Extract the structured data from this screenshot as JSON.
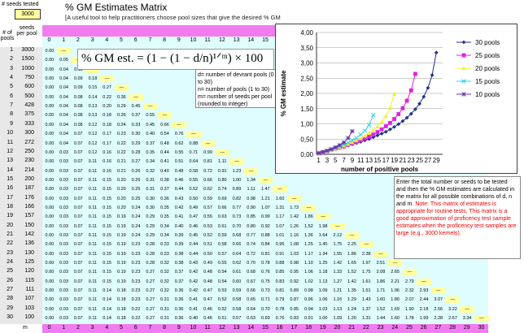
{
  "header": {
    "seeds_tested_label": "# seeds tested",
    "seeds_tested_value": "3000",
    "title": "% GM Estimates Matrix",
    "subtitle": "[A useful tool to help practitioners choose pool sizes that give  the desired % GM",
    "col_header_label_pools": "# of pools",
    "col_header_label_seeds": "seeds per pool"
  },
  "columns": [
    "0",
    "1",
    "2",
    "3",
    "4",
    "5",
    "6",
    "7",
    "8",
    "9",
    "10",
    "11",
    "12",
    "13",
    "14",
    "15",
    "16",
    "17",
    "18",
    "19",
    "20",
    "21",
    "22",
    "23",
    "24",
    "25",
    "26",
    "27",
    "28",
    "29",
    "30"
  ],
  "bottom_row_label": "m",
  "rows": [
    {
      "n": "1",
      "m": "3000"
    },
    {
      "n": "2",
      "m": "1500"
    },
    {
      "n": "3",
      "m": "1000"
    },
    {
      "n": "4",
      "m": "750"
    },
    {
      "n": "5",
      "m": "600"
    },
    {
      "n": "6",
      "m": "500"
    },
    {
      "n": "7",
      "m": "428"
    },
    {
      "n": "8",
      "m": "375"
    },
    {
      "n": "9",
      "m": "333"
    },
    {
      "n": "10",
      "m": "300"
    },
    {
      "n": "11",
      "m": "272"
    },
    {
      "n": "12",
      "m": "250"
    },
    {
      "n": "13",
      "m": "230"
    },
    {
      "n": "14",
      "m": "214"
    },
    {
      "n": "15",
      "m": "200"
    },
    {
      "n": "16",
      "m": "187"
    },
    {
      "n": "17",
      "m": "176"
    },
    {
      "n": "18",
      "m": "166"
    },
    {
      "n": "19",
      "m": "157"
    },
    {
      "n": "20",
      "m": "150"
    },
    {
      "n": "21",
      "m": "142"
    },
    {
      "n": "22",
      "m": "136"
    },
    {
      "n": "23",
      "m": "130"
    },
    {
      "n": "24",
      "m": "125"
    },
    {
      "n": "25",
      "m": "120"
    },
    {
      "n": "26",
      "m": "115"
    },
    {
      "n": "27",
      "m": "111"
    },
    {
      "n": "28",
      "m": "107"
    },
    {
      "n": "29",
      "m": "103"
    },
    {
      "n": "30",
      "m": "100"
    }
  ],
  "formula": "% GM est. = (1 − (1 − d/n)¹ᐟᵐ) × 100",
  "legend_text": {
    "d": "d= number of devrant pools (0 to 30)",
    "n": "n= number of pools (1 to 30)",
    "m": "m= number of seeds per pool (rounded to integer)"
  },
  "note": {
    "main": "Enter the total number or seeds to be tested and then the % GM estimates are calculated in the matrix for all possible combinations of d, n and m.",
    "red": "Note: This matrix of estimates is appropriate for routine tests. This matrix is a good approximation of proficency test sample estimates when the proficency test samples are large (e.g., 3000 kernels)."
  },
  "chart_data": {
    "type": "line",
    "xlabel": "number of positive pools",
    "ylabel": "% GM estimate",
    "ylim": [
      0,
      4.0
    ],
    "yticks": [
      "0,00",
      "0,50",
      "1,00",
      "1,50",
      "2,00",
      "2,50",
      "3,00",
      "3,50",
      "4,00"
    ],
    "xticks": [
      "1",
      "3",
      "5",
      "7",
      "9",
      "11",
      "13",
      "15",
      "17",
      "19",
      "21",
      "23",
      "25",
      "27",
      "29"
    ],
    "legend_position": "top-right",
    "series": [
      {
        "name": "30 pools",
        "color": "#1f2f8f",
        "marker": "diamond",
        "x": [
          1,
          2,
          3,
          4,
          5,
          6,
          7,
          8,
          9,
          10,
          11,
          12,
          13,
          14,
          15,
          16,
          17,
          18,
          19,
          20,
          21,
          22,
          23,
          24,
          25,
          26,
          27,
          28,
          29
        ],
        "y": [
          0.03,
          0.07,
          0.1,
          0.14,
          0.17,
          0.21,
          0.24,
          0.29,
          0.33,
          0.37,
          0.41,
          0.46,
          0.5,
          0.56,
          0.62,
          0.68,
          0.74,
          0.82,
          0.9,
          0.99,
          1.09,
          1.2,
          1.33,
          1.48,
          1.66,
          1.89,
          2.18,
          2.6,
          3.34
        ]
      },
      {
        "name": "25 pools",
        "color": "#e020e0",
        "marker": "square",
        "x": [
          1,
          2,
          3,
          4,
          5,
          6,
          7,
          8,
          9,
          10,
          11,
          12,
          13,
          14,
          15,
          16,
          17,
          18,
          19,
          20,
          21,
          22,
          23,
          24
        ],
        "y": [
          0.03,
          0.07,
          0.1,
          0.14,
          0.18,
          0.22,
          0.26,
          0.31,
          0.36,
          0.41,
          0.46,
          0.52,
          0.58,
          0.65,
          0.73,
          0.82,
          0.92,
          1.03,
          1.16,
          1.32,
          1.51,
          1.76,
          2.1,
          2.64
        ]
      },
      {
        "name": "20 pools",
        "color": "#f0f020",
        "marker": "triangle",
        "x": [
          1,
          2,
          3,
          4,
          5,
          6,
          7,
          8,
          9,
          10,
          11,
          12,
          13,
          14,
          15,
          16,
          17,
          18,
          19
        ],
        "y": [
          0.03,
          0.07,
          0.11,
          0.15,
          0.19,
          0.24,
          0.29,
          0.34,
          0.4,
          0.46,
          0.53,
          0.61,
          0.7,
          0.8,
          0.92,
          1.07,
          1.26,
          1.53,
          1.99
        ]
      },
      {
        "name": "15 pools",
        "color": "#30d0f0",
        "marker": "x",
        "x": [
          1,
          2,
          3,
          4,
          5,
          6,
          7,
          8,
          9,
          10,
          11,
          12,
          13,
          14
        ],
        "y": [
          0.03,
          0.07,
          0.11,
          0.16,
          0.2,
          0.26,
          0.32,
          0.38,
          0.46,
          0.54,
          0.65,
          0.78,
          0.96,
          1.29
        ]
      },
      {
        "name": "10 pools",
        "color": "#7030a0",
        "marker": "star",
        "x": [
          1,
          2,
          3,
          4,
          5,
          6,
          7,
          8,
          9
        ],
        "y": [
          0.04,
          0.07,
          0.12,
          0.17,
          0.23,
          0.3,
          0.39,
          0.53,
          0.76
        ]
      }
    ]
  },
  "colors": {
    "pink": "#f07cf0",
    "cyan": "#dffcff",
    "yellow": "#ffffa0"
  }
}
